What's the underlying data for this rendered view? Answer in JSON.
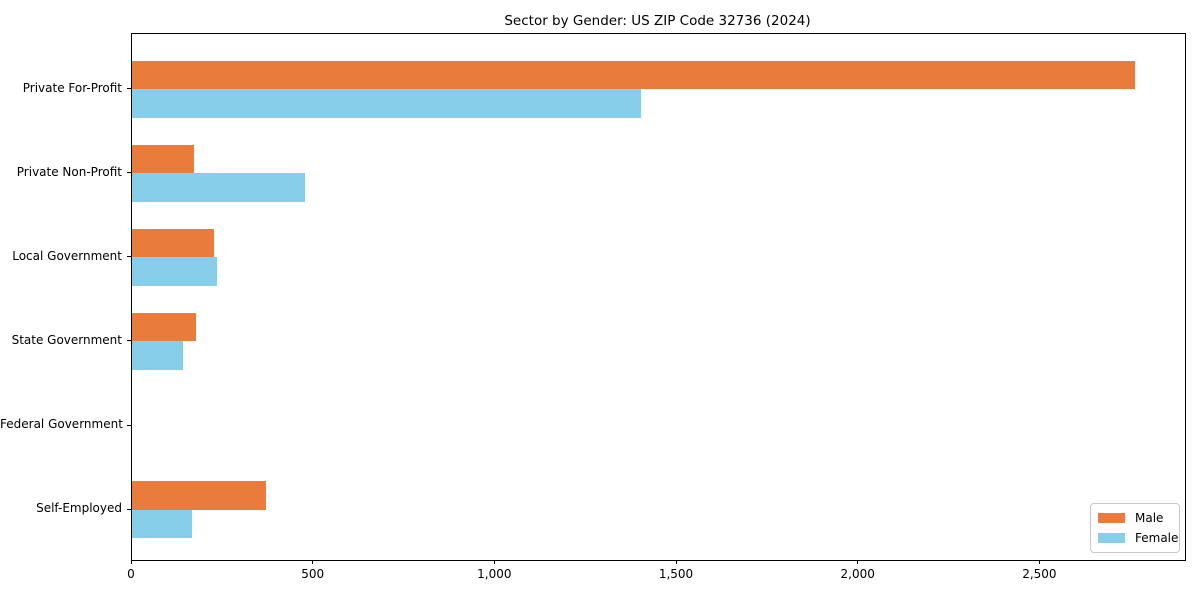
{
  "chart_data": {
    "type": "bar",
    "orientation": "horizontal",
    "title": "Sector by Gender: US ZIP Code 32736 (2024)",
    "xlabel": "",
    "ylabel": "",
    "categories": [
      "Private For-Profit",
      "Private Non-Profit",
      "Local Government",
      "State Government",
      "Federal Government",
      "Self-Employed"
    ],
    "series": [
      {
        "name": "Male",
        "color": "#e97c3c",
        "values": [
          2760,
          170,
          225,
          175,
          0,
          370
        ]
      },
      {
        "name": "Female",
        "color": "#87ceeb",
        "values": [
          1400,
          475,
          235,
          140,
          0,
          165
        ]
      }
    ],
    "xlim": [
      0,
      2898
    ],
    "x_ticks": [
      0,
      500,
      1000,
      1500,
      2000,
      2500
    ],
    "x_tick_labels": [
      "0",
      "500",
      "1,000",
      "1,500",
      "2,000",
      "2,500"
    ],
    "grid": false,
    "legend_position": "lower right"
  },
  "colors": {
    "spine": "#000000",
    "text": "#000000",
    "legend_border": "#c9c9c9",
    "background": "#ffffff"
  }
}
